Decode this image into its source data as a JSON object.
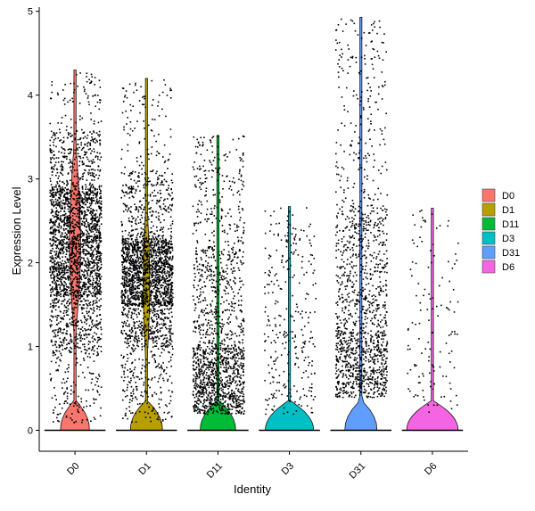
{
  "chart_data": {
    "type": "violin",
    "xlabel": "Identity",
    "ylabel": "Expression Level",
    "categories": [
      "D0",
      "D1",
      "D11",
      "D3",
      "D31",
      "D6"
    ],
    "y_ticks": [
      0,
      1,
      2,
      3,
      4,
      5
    ],
    "ylim": [
      -0.25,
      5.05
    ],
    "grid": false,
    "legend_position": "right",
    "points_shown": true,
    "groups": [
      {
        "name": "D0",
        "color": "#F8766D",
        "max": 4.3,
        "density_zero": 0.45,
        "bands": [
          [
            0.1,
            0.9,
            0.05
          ],
          [
            0.9,
            1.6,
            0.15
          ],
          [
            1.6,
            2.9,
            0.65
          ],
          [
            2.9,
            3.6,
            0.12
          ],
          [
            3.6,
            4.3,
            0.03
          ]
        ],
        "points": 2600
      },
      {
        "name": "D1",
        "color": "#B79F00",
        "max": 4.2,
        "density_zero": 0.5,
        "bands": [
          [
            0.1,
            1.0,
            0.08
          ],
          [
            1.0,
            1.5,
            0.15
          ],
          [
            1.5,
            2.3,
            0.6
          ],
          [
            2.3,
            3.1,
            0.13
          ],
          [
            3.1,
            4.2,
            0.04
          ]
        ],
        "points": 2400
      },
      {
        "name": "D11",
        "color": "#00BA38",
        "max": 3.52,
        "density_zero": 0.55,
        "bands": [
          [
            0.2,
            1.0,
            0.55
          ],
          [
            1.0,
            2.2,
            0.3
          ],
          [
            2.2,
            3.52,
            0.15
          ]
        ],
        "points": 1500
      },
      {
        "name": "D3",
        "color": "#00BFC4",
        "max": 2.67,
        "density_zero": 0.75,
        "bands": [
          [
            0.2,
            1.2,
            0.5
          ],
          [
            1.2,
            2.67,
            0.5
          ]
        ],
        "points": 300
      },
      {
        "name": "D31",
        "color": "#619CFF",
        "max": 4.93,
        "density_zero": 0.5,
        "bands": [
          [
            0.4,
            1.2,
            0.45
          ],
          [
            1.2,
            2.7,
            0.4
          ],
          [
            2.7,
            4.93,
            0.15
          ]
        ],
        "points": 1400
      },
      {
        "name": "D6",
        "color": "#F564E3",
        "max": 2.65,
        "density_zero": 0.8,
        "bands": [
          [
            0.2,
            1.5,
            0.6
          ],
          [
            1.5,
            2.65,
            0.4
          ]
        ],
        "points": 130
      }
    ]
  }
}
